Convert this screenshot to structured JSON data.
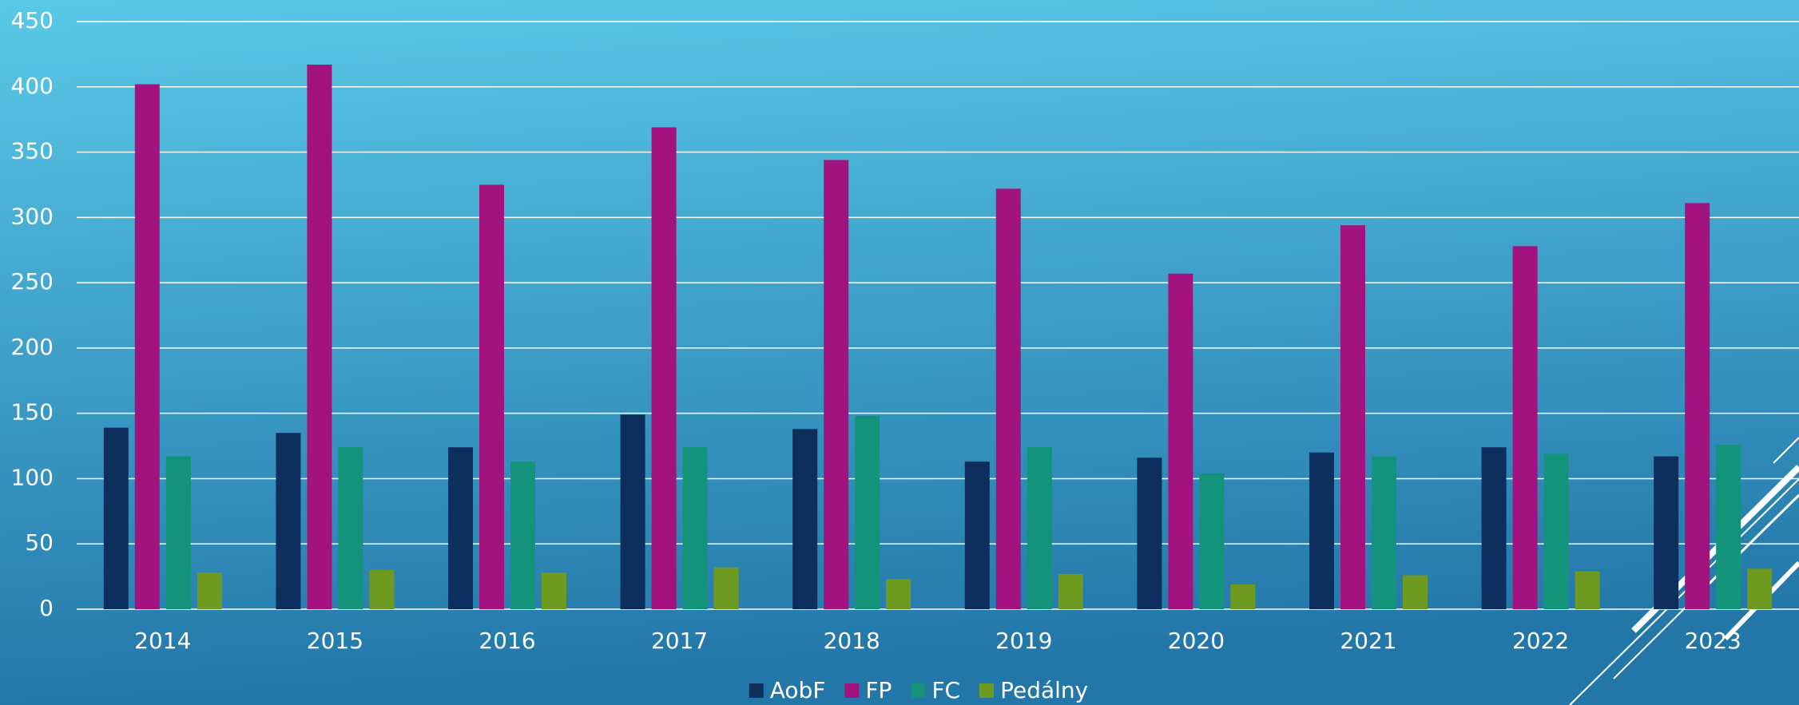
{
  "chart_data": {
    "type": "bar",
    "categories": [
      "2014",
      "2015",
      "2016",
      "2017",
      "2018",
      "2019",
      "2020",
      "2021",
      "2022",
      "2023"
    ],
    "series": [
      {
        "name": "AobF",
        "color": "#0e2f5e",
        "values": [
          139,
          135,
          124,
          149,
          138,
          113,
          116,
          120,
          124,
          117
        ]
      },
      {
        "name": "FP",
        "color": "#a3137f",
        "values": [
          402,
          417,
          325,
          369,
          344,
          322,
          257,
          294,
          278,
          311
        ]
      },
      {
        "name": "FC",
        "color": "#13937a",
        "values": [
          117,
          124,
          113,
          124,
          148,
          124,
          104,
          117,
          119,
          126
        ]
      },
      {
        "name": "Pedálny",
        "color": "#6e9b1f",
        "values": [
          28,
          30,
          28,
          32,
          23,
          27,
          19,
          26,
          29,
          31
        ]
      }
    ],
    "ylim": [
      0,
      450
    ],
    "yticks": [
      0,
      50,
      100,
      150,
      200,
      250,
      300,
      350,
      400,
      450
    ],
    "grid": true,
    "legend": "bottom"
  }
}
